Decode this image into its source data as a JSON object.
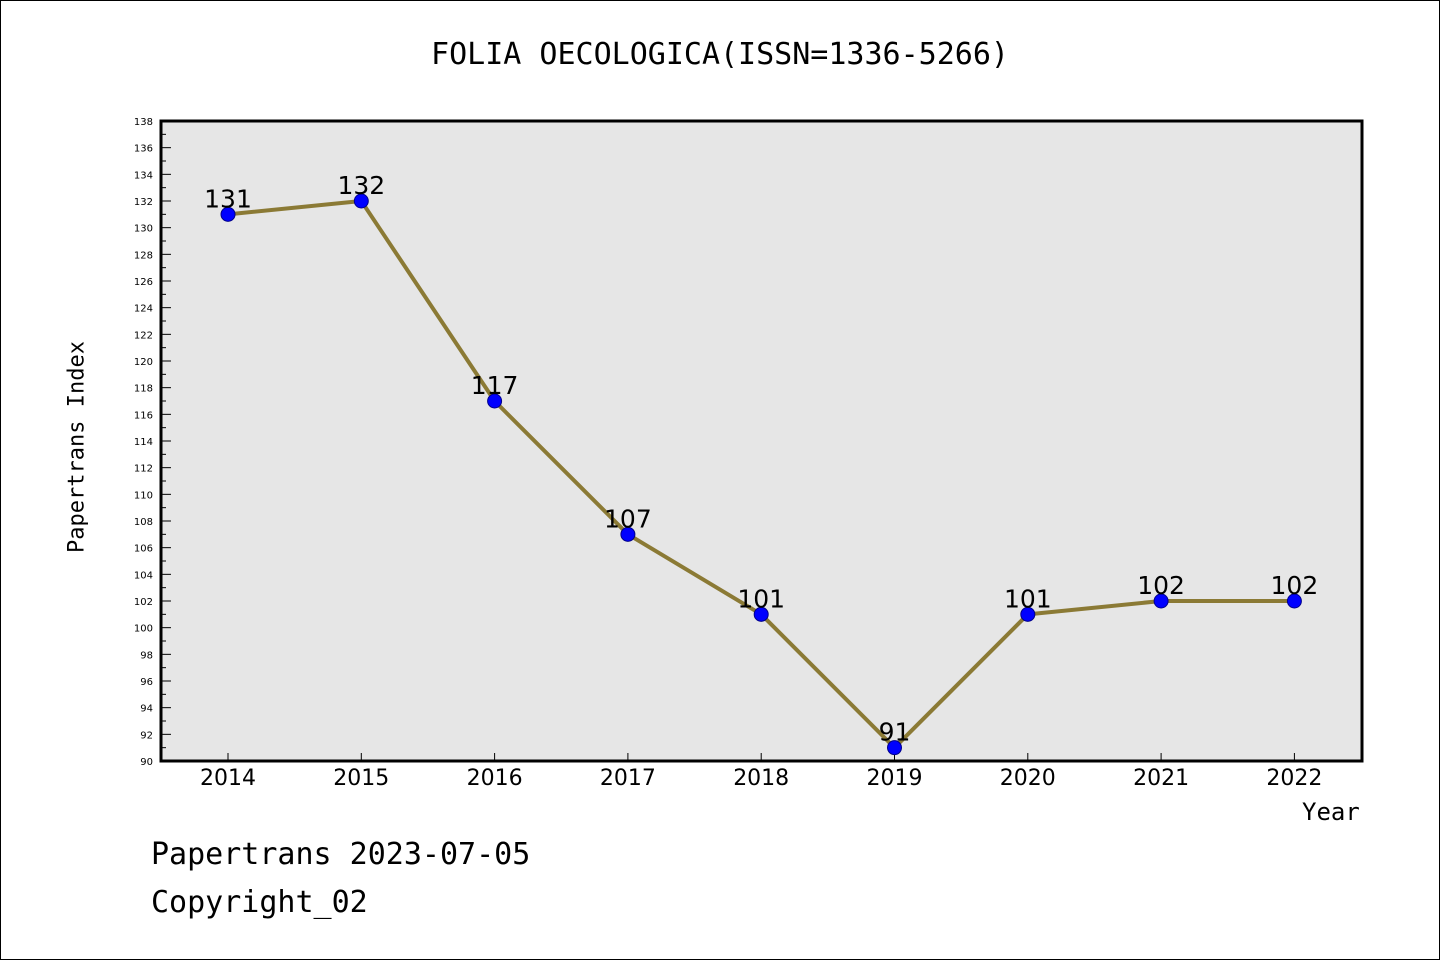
{
  "title": "FOLIA OECOLOGICA(ISSN=1336-5266)",
  "footer": {
    "date_text": "Papertrans 2023-07-05",
    "copyright_text": "Copyright_02"
  },
  "colors": {
    "plot_background": "#e6e6e6",
    "line": "#8b7a35",
    "marker": "#0000ff"
  },
  "chart_data": {
    "type": "line",
    "xlabel": "Year",
    "ylabel": "Papertrans Index",
    "categories": [
      "2014",
      "2015",
      "2016",
      "2017",
      "2018",
      "2019",
      "2020",
      "2021",
      "2022"
    ],
    "series": [
      {
        "values": [
          131,
          132,
          117,
          107,
          101,
          91,
          101,
          102,
          102
        ]
      }
    ],
    "data_labels": [
      "131",
      "132",
      "117",
      "107",
      "101",
      "91",
      "101",
      "102",
      "102"
    ],
    "ylim": [
      90,
      138
    ],
    "yticks": [
      "90",
      "92",
      "94",
      "96",
      "98",
      "100",
      "102",
      "104",
      "106",
      "108",
      "110",
      "112",
      "114",
      "116",
      "118",
      "120",
      "122",
      "124",
      "126",
      "128",
      "130",
      "132",
      "134",
      "136",
      "138"
    ],
    "grid": false,
    "legend": "none"
  }
}
